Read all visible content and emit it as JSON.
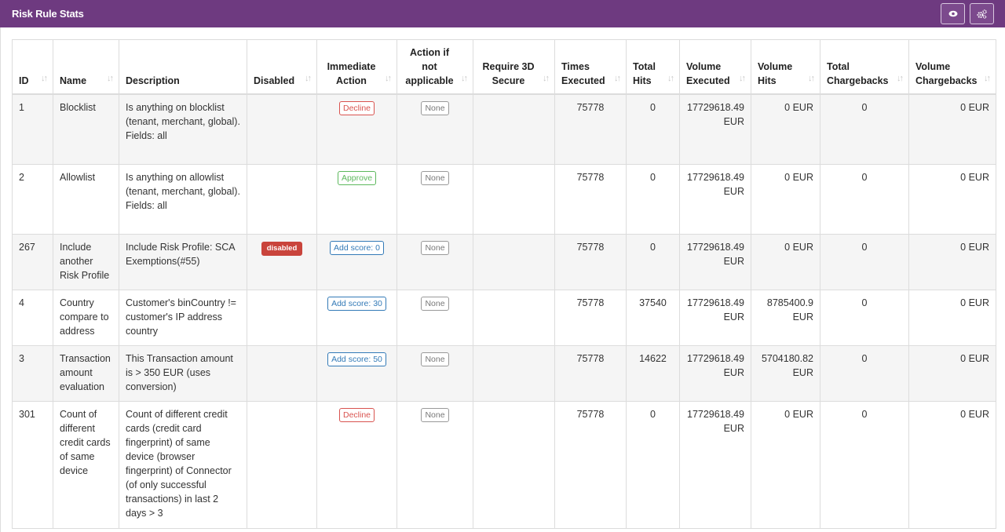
{
  "header": {
    "title": "Risk Rule Stats",
    "eye_icon": "eye-icon",
    "settings_icon": "cogs-icon"
  },
  "table": {
    "columns": [
      {
        "label": "ID"
      },
      {
        "label": "Name"
      },
      {
        "label": "Description"
      },
      {
        "label": "Disabled"
      },
      {
        "label": "Immediate Action"
      },
      {
        "label": "Action if not applicable"
      },
      {
        "label": "Require 3D Secure"
      },
      {
        "label": "Times Executed"
      },
      {
        "label": "Total Hits"
      },
      {
        "label": "Volume Executed"
      },
      {
        "label": "Volume Hits"
      },
      {
        "label": "Total Chargebacks"
      },
      {
        "label": "Volume Chargebacks"
      }
    ],
    "rows": [
      {
        "id": "1",
        "name": "Blocklist",
        "desc": "Is anything on blocklist (tenant, merchant, global).",
        "fields": "Fields: all",
        "disabled": "",
        "action": "Decline",
        "action_type": "decline",
        "notapp": "None",
        "secure": "",
        "times": "75778",
        "hits": "0",
        "vol_exec": "17729618.49 EUR",
        "vol_hits": "0 EUR",
        "chargebacks": "0",
        "vol_cb": "0 EUR"
      },
      {
        "id": "2",
        "name": "Allowlist",
        "desc": "Is anything on allowlist (tenant, merchant, global).",
        "fields": "Fields: all",
        "disabled": "",
        "action": "Approve",
        "action_type": "approve",
        "notapp": "None",
        "secure": "",
        "times": "75778",
        "hits": "0",
        "vol_exec": "17729618.49 EUR",
        "vol_hits": "0 EUR",
        "chargebacks": "0",
        "vol_cb": "0 EUR"
      },
      {
        "id": "267",
        "name": "Include another Risk Profile",
        "desc": "Include Risk Profile: SCA Exemptions(#55)",
        "fields": "",
        "disabled": "disabled",
        "action": "Add score: 0",
        "action_type": "score",
        "notapp": "None",
        "secure": "",
        "times": "75778",
        "hits": "0",
        "vol_exec": "17729618.49 EUR",
        "vol_hits": "0 EUR",
        "chargebacks": "0",
        "vol_cb": "0 EUR"
      },
      {
        "id": "4",
        "name": "Country compare to address",
        "desc": "Customer's binCountry != customer's IP address country",
        "fields": "",
        "disabled": "",
        "action": "Add score: 30",
        "action_type": "score",
        "notapp": "None",
        "secure": "",
        "times": "75778",
        "hits": "37540",
        "vol_exec": "17729618.49 EUR",
        "vol_hits": "8785400.9 EUR",
        "chargebacks": "0",
        "vol_cb": "0 EUR"
      },
      {
        "id": "3",
        "name": "Transaction amount evaluation",
        "desc": "This Transaction amount is > 350 EUR (uses conversion)",
        "fields": "",
        "disabled": "",
        "action": "Add score: 50",
        "action_type": "score",
        "notapp": "None",
        "secure": "",
        "times": "75778",
        "hits": "14622",
        "vol_exec": "17729618.49 EUR",
        "vol_hits": "5704180.82 EUR",
        "chargebacks": "0",
        "vol_cb": "0 EUR"
      },
      {
        "id": "301",
        "name": "Count of different credit cards of same device",
        "desc": "Count of different credit cards (credit card fingerprint) of same device (browser fingerprint) of Connector (of only successful transactions) in last 2 days > 3",
        "fields": "",
        "disabled": "",
        "action": "Decline",
        "action_type": "decline",
        "notapp": "None",
        "secure": "",
        "times": "75778",
        "hits": "0",
        "vol_exec": "17729618.49 EUR",
        "vol_hits": "0 EUR",
        "chargebacks": "0",
        "vol_cb": "0 EUR"
      }
    ]
  },
  "colors": {
    "header_bg": "#6e3a80",
    "decline": "#d9534f",
    "approve": "#5cb85c",
    "score": "#337ab7",
    "disabled_badge": "#c9443c"
  }
}
